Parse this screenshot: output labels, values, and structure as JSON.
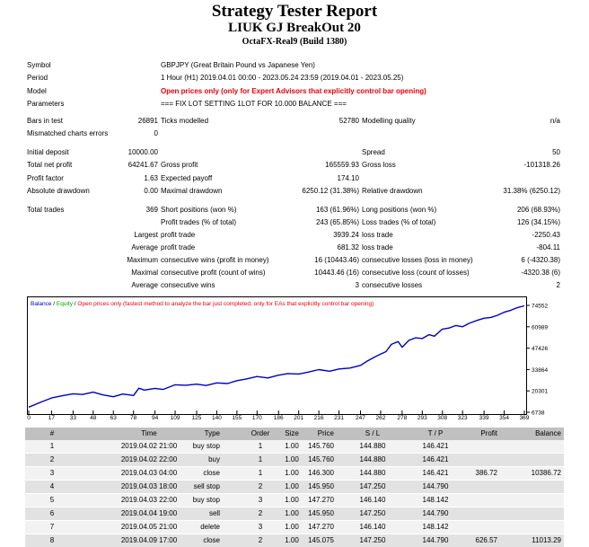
{
  "header": {
    "title": "Strategy Tester Report",
    "ea_name": "LIUK GJ BreakOut 20",
    "server": "OctaFX-Real9 (Build 1380)"
  },
  "settings": {
    "symbol_label": "Symbol",
    "symbol_value": "GBPJPY (Great Britain Pound vs Japanese Yen)",
    "period_label": "Period",
    "period_value": "1 Hour (H1) 2019.04.01 00:00 - 2023.05.24 23:59 (2019.04.01 - 2023.05.25)",
    "model_label": "Model",
    "model_value": "Open prices only (only for Expert Advisors that explicitly control bar opening)",
    "parameters_label": "Parameters",
    "parameters_value": "=== FIX LOT SETTING 1LOT FOR 10.000 BALANCE ==="
  },
  "summary": {
    "bars_label": "Bars in test",
    "bars_value": "26891",
    "ticks_label": "Ticks modelled",
    "ticks_value": "52780",
    "quality_label": "Modelling quality",
    "quality_value": "n/a",
    "mismatch_label": "Mismatched charts errors",
    "mismatch_value": "0",
    "deposit_label": "Initial deposit",
    "deposit_value": "10000.00",
    "spread_label": "Spread",
    "spread_value": "50",
    "netprofit_label": "Total net profit",
    "netprofit_value": "64241.67",
    "grossprofit_label": "Gross profit",
    "grossprofit_value": "165559.93",
    "grossloss_label": "Gross loss",
    "grossloss_value": "-101318.26",
    "pf_label": "Profit factor",
    "pf_value": "1.63",
    "payoff_label": "Expected payoff",
    "payoff_value": "174.10",
    "absdd_label": "Absolute drawdown",
    "absdd_value": "0.00",
    "maxdd_label": "Maximal drawdown",
    "maxdd_value": "6250.12 (31.38%)",
    "reldd_label": "Relative drawdown",
    "reldd_value": "31.38% (6250.12)",
    "trades_label": "Total trades",
    "trades_value": "369",
    "short_label": "Short positions (won %)",
    "short_value": "163 (61.96%)",
    "long_label": "Long positions (won %)",
    "long_value": "206 (68.93%)",
    "pt_label": "Profit trades (% of total)",
    "pt_value": "243 (65.85%)",
    "lt_label": "Loss trades (% of total)",
    "lt_value": "126 (34.15%)",
    "largest_label": "Largest",
    "lpt_label": "profit trade",
    "lpt_value": "3939.24",
    "llt_label": "loss trade",
    "llt_value": "-2250.43",
    "average_label": "Average",
    "apt_label": "profit trade",
    "apt_value": "681.32",
    "alt_label": "loss trade",
    "alt_value": "-804.11",
    "maximum_label": "Maximum",
    "mcw_label": "consecutive wins (profit in money)",
    "mcw_value": "16 (10443.46)",
    "mcl_label": "consecutive losses (loss in money)",
    "mcl_value": "6 (-4320.38)",
    "maximal_label": "Maximal",
    "mcp_label": "consecutive profit (count of wins)",
    "mcp_value": "10443.46 (16)",
    "mclc_label": "consecutive loss (count of losses)",
    "mclc_value": "-4320.38 (6)",
    "average2_label": "Average",
    "acw_label": "consecutive wins",
    "acw_value": "3",
    "acl_label": "consecutive losses",
    "acl_value": "2"
  },
  "legend": {
    "balance": "Balance",
    "sep1": " / ",
    "equity": "Equity",
    "sep2": " / ",
    "note": "Open prices only (fastest method to analyze the bar just completed, only for EAs that explicitly control bar opening)"
  },
  "colors": {
    "balance": "#0000c0",
    "equity": "#00a000",
    "note": "#e8000b",
    "header_bg": "#c0c0c0"
  },
  "chart_data": {
    "type": "line",
    "title": "",
    "xlabel": "",
    "ylabel": "",
    "x_ticks": [
      0,
      17,
      33,
      48,
      63,
      78,
      94,
      109,
      125,
      140,
      155,
      170,
      186,
      201,
      216,
      231,
      247,
      262,
      278,
      293,
      308,
      323,
      339,
      354,
      369
    ],
    "y_ticks": [
      6738,
      20301,
      33864,
      47426,
      60989,
      74552
    ],
    "xlim": [
      0,
      369
    ],
    "ylim": [
      6738,
      74552
    ],
    "series": [
      {
        "name": "Balance",
        "x": [
          0,
          10,
          17,
          25,
          33,
          40,
          48,
          55,
          63,
          70,
          78,
          82,
          86,
          94,
          100,
          109,
          117,
          125,
          132,
          140,
          148,
          155,
          162,
          170,
          178,
          186,
          193,
          201,
          208,
          216,
          224,
          231,
          239,
          247,
          252,
          258,
          262,
          266,
          270,
          275,
          278,
          283,
          288,
          293,
          298,
          302,
          308,
          313,
          318,
          323,
          328,
          333,
          339,
          344,
          349,
          354,
          359,
          364,
          369
        ],
        "values": [
          10000,
          13500,
          15800,
          17200,
          18500,
          18000,
          19500,
          17800,
          16600,
          18300,
          17400,
          22000,
          20800,
          21900,
          21200,
          24200,
          23900,
          24600,
          23700,
          25400,
          25000,
          26800,
          27900,
          29400,
          28500,
          30300,
          31300,
          31000,
          32200,
          33800,
          32800,
          34200,
          34800,
          36500,
          39200,
          42000,
          43600,
          45200,
          49800,
          51600,
          48000,
          52300,
          54000,
          53500,
          56000,
          55000,
          59500,
          60200,
          61800,
          61000,
          63200,
          64800,
          66400,
          66900,
          68300,
          70200,
          71500,
          73200,
          74241
        ]
      }
    ]
  },
  "table": {
    "columns": [
      "#",
      "Time",
      "Type",
      "Order",
      "Size",
      "Price",
      "S / L",
      "T / P",
      "Profit",
      "Balance"
    ],
    "rows": [
      [
        "1",
        "2019.04.02 21:00",
        "buy stop",
        "1",
        "1.00",
        "145.760",
        "144.880",
        "146.421",
        "",
        ""
      ],
      [
        "2",
        "2019.04.02 22:00",
        "buy",
        "1",
        "1.00",
        "145.760",
        "144.880",
        "146.421",
        "",
        ""
      ],
      [
        "3",
        "2019.04.03 04:00",
        "close",
        "1",
        "1.00",
        "146.300",
        "144.880",
        "146.421",
        "386.72",
        "10386.72"
      ],
      [
        "4",
        "2019.04.03 18:00",
        "sell stop",
        "2",
        "1.00",
        "145.950",
        "147.250",
        "144.790",
        "",
        ""
      ],
      [
        "5",
        "2019.04.03 22:00",
        "buy stop",
        "3",
        "1.00",
        "147.270",
        "146.140",
        "148.142",
        "",
        ""
      ],
      [
        "6",
        "2019.04.04 19:00",
        "sell",
        "2",
        "1.00",
        "145.950",
        "147.250",
        "144.790",
        "",
        ""
      ],
      [
        "7",
        "2019.04.05 21:00",
        "delete",
        "3",
        "1.00",
        "147.270",
        "146.140",
        "148.142",
        "",
        ""
      ],
      [
        "8",
        "2019.04.09 17:00",
        "close",
        "2",
        "1.00",
        "145.075",
        "147.250",
        "144.790",
        "626.57",
        "11013.29"
      ]
    ]
  }
}
